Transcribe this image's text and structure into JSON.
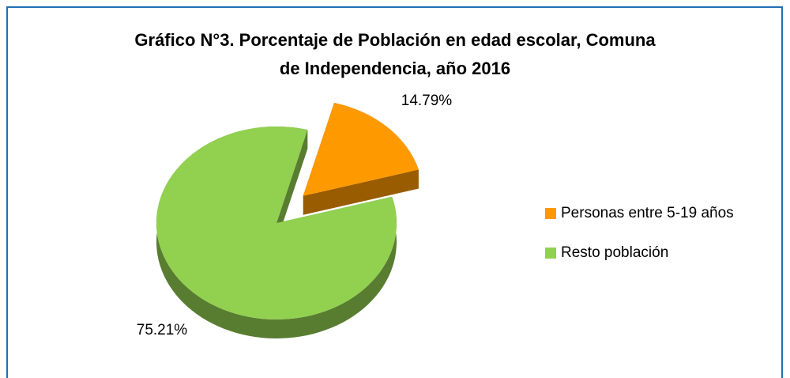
{
  "chart_data": {
    "type": "pie3d",
    "title": [
      "Gráfico N°3. Porcentaje de Población en edad escolar, Comuna",
      "de Independencia, año 2016"
    ],
    "categories": [
      "Personas entre 5-19 años",
      "Resto población"
    ],
    "values": [
      14.79,
      75.21
    ],
    "value_labels": [
      "14.79%",
      "75.21%"
    ],
    "colors": [
      "#ff9900",
      "#92d050"
    ],
    "legend": "right"
  }
}
